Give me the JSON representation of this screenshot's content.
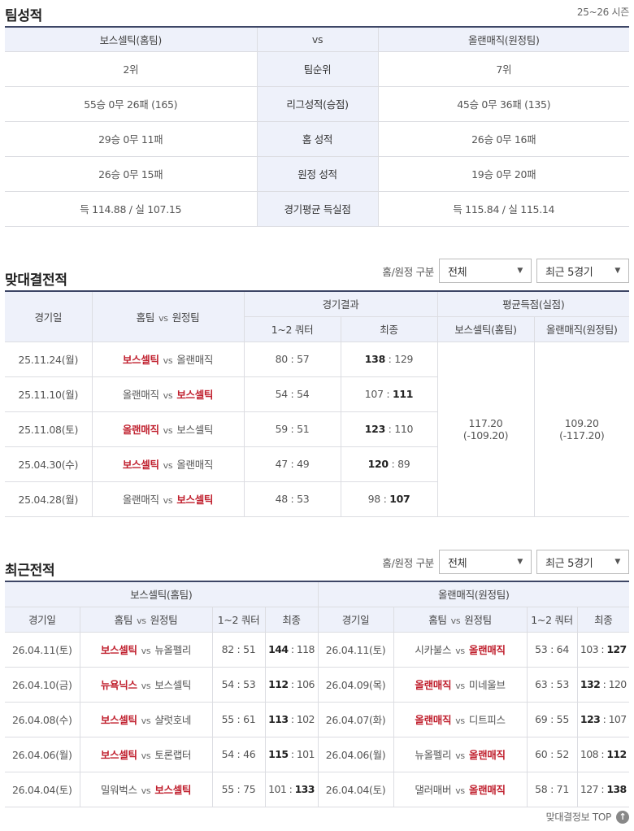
{
  "team_stats": {
    "title": "팀성적",
    "season": "25~26 시즌",
    "home": "보스셀틱(홈팀)",
    "vs": "vs",
    "away": "올랜매직(원정팀)",
    "rows": [
      {
        "label": "팀순위",
        "home": "2위",
        "away": "7위"
      },
      {
        "label": "리그성적(승점)",
        "home": "55승 0무 26패 (165)",
        "away": "45승 0무 36패 (135)"
      },
      {
        "label": "홈 성적",
        "home": "29승 0무 11패",
        "away": "26승 0무 16패"
      },
      {
        "label": "원정 성적",
        "home": "26승 0무 15패",
        "away": "19승 0무 20패"
      },
      {
        "label": "경기평균 득실점",
        "home": "득 114.88 / 실 107.15",
        "away": "득 115.84 / 실 115.14"
      }
    ]
  },
  "h2h": {
    "title": "맞대결전적",
    "filter_label": "홈/원정 구분",
    "filter_value": "전체",
    "range_value": "최근 5경기",
    "headers": {
      "date": "경기일",
      "teams": "홈팀",
      "vs": "vs",
      "teams2": "원정팀",
      "result": "경기결과",
      "q12": "1~2 쿼터",
      "final": "최종",
      "avg": "평균득점(실점)",
      "home": "보스셀틱(홈팀)",
      "away": "올랜매직(원정팀)"
    },
    "avg_home": "117.20",
    "avg_home_loss": "(-109.20)",
    "avg_away": "109.20",
    "avg_away_loss": "(-117.20)",
    "rows": [
      {
        "date": "25.11.24(월)",
        "home": "보스셀틱",
        "away": "올랜매직",
        "q": "80 : 57",
        "hs": "138",
        "as": "129",
        "winner": "home"
      },
      {
        "date": "25.11.10(월)",
        "home": "올랜매직",
        "away": "보스셀틱",
        "q": "54 : 54",
        "hs": "107",
        "as": "111",
        "winner": "away"
      },
      {
        "date": "25.11.08(토)",
        "home": "올랜매직",
        "away": "보스셀틱",
        "q": "59 : 51",
        "hs": "123",
        "as": "110",
        "winner": "home"
      },
      {
        "date": "25.04.30(수)",
        "home": "보스셀틱",
        "away": "올랜매직",
        "q": "47 : 49",
        "hs": "120",
        "as": "89",
        "winner": "home"
      },
      {
        "date": "25.04.28(월)",
        "home": "올랜매직",
        "away": "보스셀틱",
        "q": "48 : 53",
        "hs": "98",
        "as": "107",
        "winner": "away"
      }
    ]
  },
  "recent": {
    "title": "최근전적",
    "filter_label": "홈/원정 구분",
    "filter_value": "전체",
    "range_value": "최근 5경기",
    "home_team": "보스셀틱(홈팀)",
    "away_team": "올랜매직(원정팀)",
    "headers": {
      "date": "경기일",
      "teams": "홈팀",
      "vs": "vs",
      "teams2": "원정팀",
      "q12": "1~2 쿼터",
      "final": "최종"
    },
    "home_rows": [
      {
        "date": "26.04.11(토)",
        "home": "보스셀틱",
        "away": "뉴올펠리",
        "q": "82 : 51",
        "hs": "144",
        "as": "118",
        "winner": "home"
      },
      {
        "date": "26.04.10(금)",
        "home": "뉴욕닉스",
        "away": "보스셀틱",
        "q": "54 : 53",
        "hs": "112",
        "as": "106",
        "winner": "home"
      },
      {
        "date": "26.04.08(수)",
        "home": "보스셀틱",
        "away": "샬럿호네",
        "q": "55 : 61",
        "hs": "113",
        "as": "102",
        "winner": "home"
      },
      {
        "date": "26.04.06(월)",
        "home": "보스셀틱",
        "away": "토론랩터",
        "q": "54 : 46",
        "hs": "115",
        "as": "101",
        "winner": "home"
      },
      {
        "date": "26.04.04(토)",
        "home": "밀워벅스",
        "away": "보스셀틱",
        "q": "55 : 75",
        "hs": "101",
        "as": "133",
        "winner": "away"
      }
    ],
    "away_rows": [
      {
        "date": "26.04.11(토)",
        "home": "시카불스",
        "away": "올랜매직",
        "q": "53 : 64",
        "hs": "103",
        "as": "127",
        "winner": "away"
      },
      {
        "date": "26.04.09(목)",
        "home": "올랜매직",
        "away": "미네울브",
        "q": "63 : 53",
        "hs": "132",
        "as": "120",
        "winner": "home"
      },
      {
        "date": "26.04.07(화)",
        "home": "올랜매직",
        "away": "디트피스",
        "q": "69 : 55",
        "hs": "123",
        "as": "107",
        "winner": "home"
      },
      {
        "date": "26.04.06(월)",
        "home": "뉴올펠리",
        "away": "올랜매직",
        "q": "60 : 52",
        "hs": "108",
        "as": "112",
        "winner": "away"
      },
      {
        "date": "26.04.04(토)",
        "home": "댈러매버",
        "away": "올랜매직",
        "q": "58 : 71",
        "hs": "127",
        "as": "138",
        "winner": "away"
      }
    ]
  },
  "footer": {
    "top_label": "맞대결정보 TOP",
    "icon": "arrow-up-icon"
  },
  "colors": {
    "winner": "#c0202e",
    "header_bg": "#eef1fa",
    "border_top": "#3d4666"
  }
}
